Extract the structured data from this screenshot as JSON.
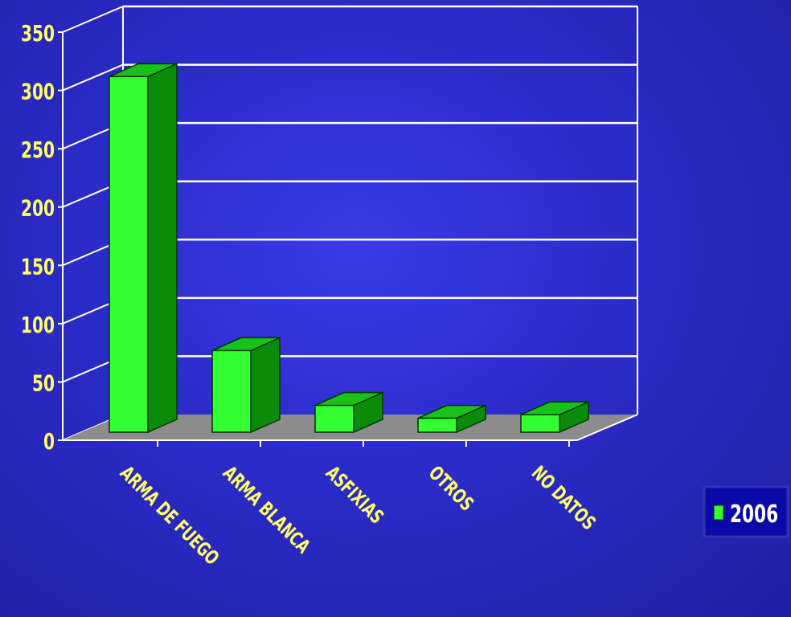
{
  "chart_data": {
    "type": "bar",
    "style": "3d-column",
    "categories": [
      "ARMA DE FUEGO",
      "ARMA BLANCA",
      "ASFIXIAS",
      "OTROS",
      "NO DATOS"
    ],
    "series": [
      {
        "name": "2006",
        "values": [
          305,
          70,
          23,
          12,
          15
        ]
      }
    ],
    "ylim": [
      0,
      350
    ],
    "yticks": [
      0,
      50,
      100,
      150,
      200,
      250,
      300,
      350
    ],
    "grid": true,
    "legend": "right",
    "colors": {
      "bar_front": "#33ff33",
      "bar_side": "#0a8c0a",
      "bar_top": "#19c219",
      "floor": "#8c8c8c",
      "label": "#ffff66",
      "gridline": "#ffffff",
      "legend_border": "#3333aa"
    }
  }
}
